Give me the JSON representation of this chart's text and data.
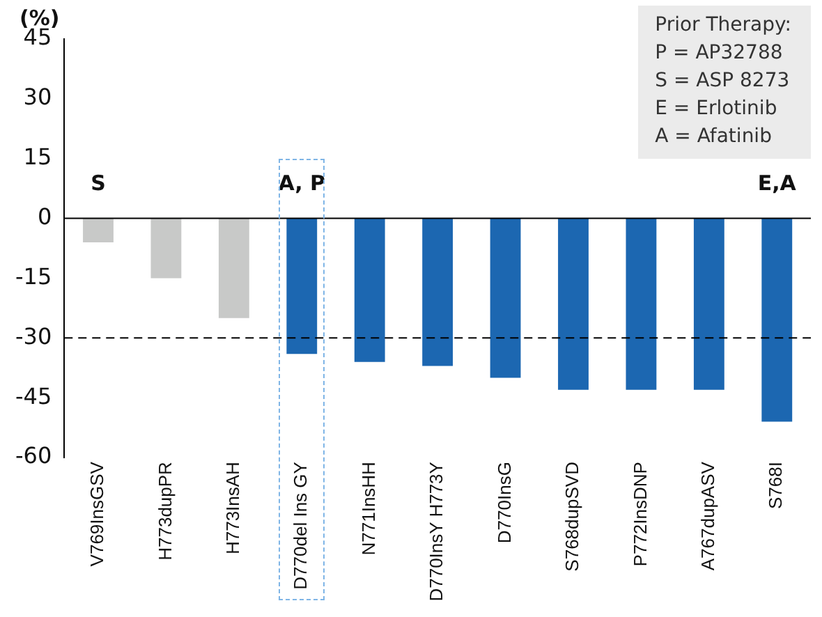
{
  "chart_data": {
    "type": "bar",
    "ylabel": "(%)",
    "categories": [
      "V769InsGSV",
      "H773dupPR",
      "H773InsAH",
      "D770del Ins GY",
      "N771InsHH",
      "D770InsY H773Y",
      "D770InsG",
      "S768dupSVD",
      "P772InsDNP",
      "A767dupASV",
      "S768I"
    ],
    "values": [
      -6,
      -15,
      -25,
      -34,
      -36,
      -37,
      -40,
      -43,
      -43,
      -43,
      -51
    ],
    "colors": [
      "#c8c9c8",
      "#c8c9c8",
      "#c8c9c8",
      "#1c67b1",
      "#1c67b1",
      "#1c67b1",
      "#1c67b1",
      "#1c67b1",
      "#1c67b1",
      "#1c67b1",
      "#1c67b1"
    ],
    "ylim": [
      -60,
      45
    ],
    "yticks": [
      -60,
      -45,
      -30,
      -15,
      0,
      15,
      30,
      45
    ],
    "grid": false,
    "legend": false,
    "ref_lines": [
      {
        "axis": "y",
        "value": -30,
        "color": "#000000",
        "line_style": "dashed"
      }
    ],
    "annotations": [
      "S",
      "A, P",
      "E,A",
      "Prior Therapy:",
      "P = AP32788",
      "S = ASP 8273",
      "E =  Erlotinib",
      "A = Afatinib"
    ]
  }
}
